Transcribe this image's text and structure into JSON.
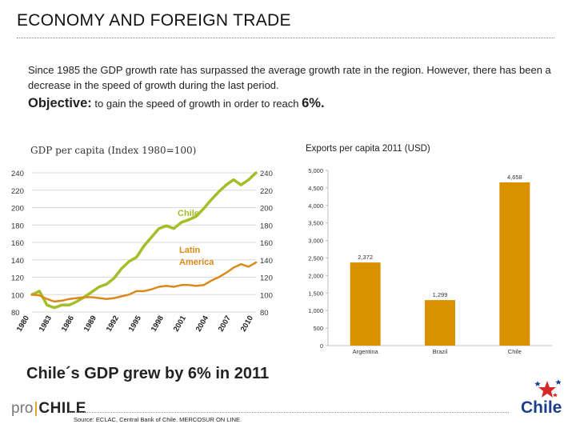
{
  "slide": {
    "title": "ECONOMY AND FOREIGN TRADE",
    "intro": "Since 1985 the GDP growth rate has surpassed the average growth rate  in the region. However, there has been a decrease in the speed of growth during the last  period.",
    "objective_label": "Objective:",
    "objective_text": " to gain  the speed of growth in order to reach ",
    "objective_value": "6%.",
    "headline": "Chile´s GDP grew by 6% in 2011",
    "source": "Source: ECLAC, Central Bank of Chile. MERCOSUR ON LINE.",
    "logo_pro": "pro",
    "logo_sep": "|",
    "logo_chile": "CHILE",
    "brand": "Chile",
    "colors": {
      "chile_line": "#a6bd2a",
      "latam_line": "#d98a1a",
      "bar": "#d99100",
      "brand_blue": "#1b3f8a"
    }
  },
  "chart_data": [
    {
      "type": "line",
      "title": "GDP per capita (Index 1980=100)",
      "ylim": [
        80,
        240
      ],
      "yticks": [
        80,
        100,
        120,
        140,
        160,
        180,
        200,
        220,
        240
      ],
      "y_axis": "both sides",
      "grid": true,
      "x": [
        1980,
        1981,
        1982,
        1983,
        1984,
        1985,
        1986,
        1987,
        1988,
        1989,
        1990,
        1991,
        1992,
        1993,
        1994,
        1995,
        1996,
        1997,
        1998,
        1999,
        2000,
        2001,
        2002,
        2003,
        2004,
        2005,
        2006,
        2007,
        2008,
        2009,
        2010
      ],
      "xticks": [
        "1980",
        "1983",
        "1986",
        "1989",
        "1992",
        "1995",
        "1998",
        "2001",
        "2004",
        "2007",
        "2010"
      ],
      "series": [
        {
          "name": "Chile",
          "color": "#a6bd2a",
          "values": [
            100,
            104,
            88,
            85,
            88,
            88,
            92,
            97,
            103,
            109,
            112,
            119,
            130,
            138,
            143,
            156,
            166,
            176,
            179,
            176,
            183,
            186,
            190,
            199,
            209,
            218,
            226,
            232,
            226,
            232,
            240
          ]
        },
        {
          "name": "Latin America",
          "label": "Latin America",
          "color": "#d98a1a",
          "values": [
            100,
            99,
            95,
            92,
            93,
            95,
            96,
            97,
            97,
            96,
            95,
            96,
            98,
            100,
            104,
            104,
            106,
            109,
            110,
            109,
            111,
            111,
            110,
            111,
            116,
            120,
            125,
            131,
            135,
            132,
            137
          ]
        }
      ],
      "annotations": [
        "Chile",
        "Latin America"
      ]
    },
    {
      "type": "bar",
      "title": "Exports per capita 2011 (USD)",
      "categories": [
        "Argentina",
        "Brazil",
        "Chile"
      ],
      "values": [
        2372,
        1299,
        4658
      ],
      "data_labels": [
        "2,372",
        "1,299",
        "4,658"
      ],
      "ylim": [
        0,
        5000
      ],
      "yticks": [
        "0",
        "500",
        "1,000",
        "1,500",
        "2,000",
        "2,500",
        "3,000",
        "3,500",
        "4,000",
        "4,500",
        "5,000"
      ],
      "ytick_values": [
        0,
        500,
        1000,
        1500,
        2000,
        2500,
        3000,
        3500,
        4000,
        4500,
        5000
      ],
      "grid": false
    }
  ]
}
